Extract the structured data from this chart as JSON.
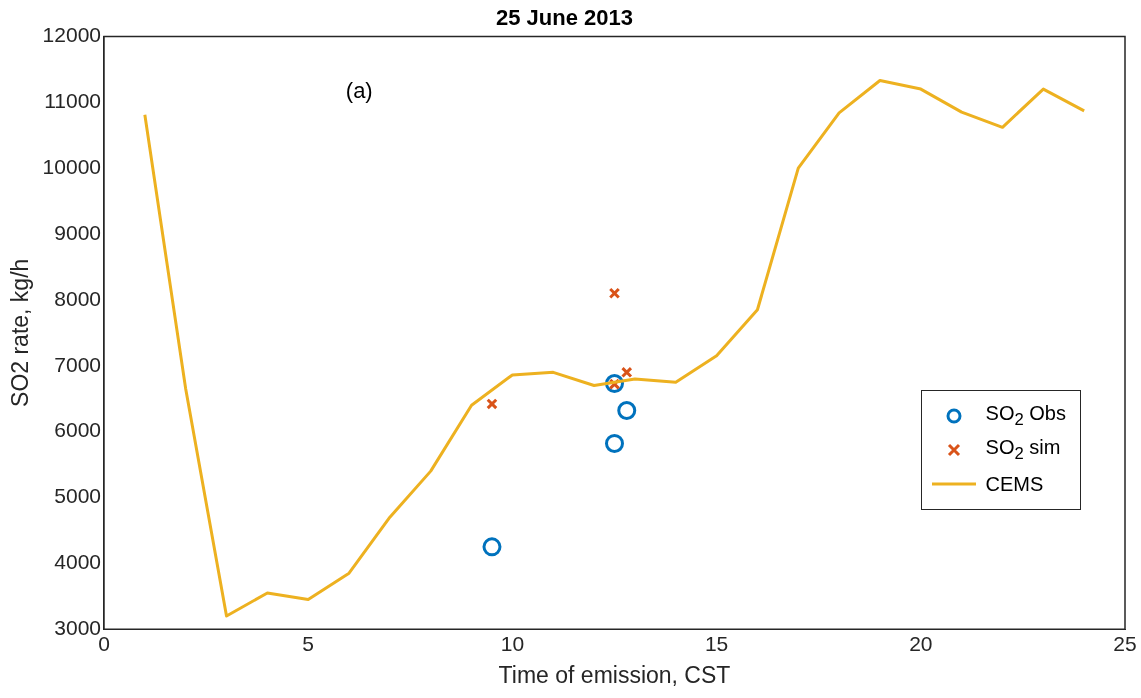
{
  "chart_data": {
    "type": "line",
    "title": "25 June 2013",
    "xlabel": "Time of emission, CST",
    "ylabel": "SO2 rate, kg/h",
    "xlim": [
      0,
      25
    ],
    "xticks": [
      0,
      5,
      10,
      15,
      20,
      25
    ],
    "ylim": [
      3000,
      12000
    ],
    "yticks": [
      3000,
      4000,
      5000,
      6000,
      7000,
      8000,
      9000,
      10000,
      11000,
      12000
    ],
    "grid": false,
    "legend": "right",
    "annotations": [
      "(a)"
    ],
    "series": [
      {
        "name": "SO$_{2}$ Obs",
        "type": "scatter",
        "marker": "circle",
        "color": "#0072bd",
        "x": [
          9.5,
          12.5,
          12.5,
          12.8
        ],
        "values": [
          4250,
          5820,
          6730,
          6320
        ]
      },
      {
        "name": "SO$_{2}$ sim",
        "type": "scatter",
        "marker": "cross",
        "color": "#d95319",
        "x": [
          9.5,
          12.5,
          12.5,
          12.8
        ],
        "values": [
          6420,
          8100,
          6720,
          6900
        ]
      },
      {
        "name": "CEMS",
        "marker": "none",
        "line_style": "solid",
        "color": "#edb120",
        "x": [
          1,
          2,
          3,
          4,
          5,
          6,
          7,
          8,
          9,
          10,
          11,
          12,
          13,
          14,
          15,
          16,
          17,
          18,
          19,
          20,
          21,
          22,
          23,
          24
        ],
        "values": [
          10810,
          6650,
          3200,
          3550,
          3450,
          3850,
          4700,
          5400,
          6400,
          6860,
          6900,
          6700,
          6800,
          6750,
          7150,
          7850,
          10000,
          10840,
          11330,
          11200,
          10850,
          10620,
          11200,
          10870
        ]
      }
    ]
  }
}
